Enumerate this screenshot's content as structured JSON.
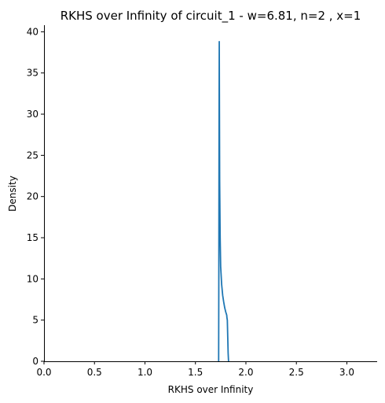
{
  "chart_data": {
    "type": "line",
    "title": "RKHS over Infinity of circuit_1 - w=6.81, n=2 , x=1",
    "xlabel": "RKHS over Infinity",
    "ylabel": "Density",
    "xlim": [
      0,
      3.3
    ],
    "ylim": [
      0,
      40.8
    ],
    "xticks": [
      0.0,
      0.5,
      1.0,
      1.5,
      2.0,
      2.5,
      3.0
    ],
    "xtick_labels": [
      "0.0",
      "0.5",
      "1.0",
      "1.5",
      "2.0",
      "2.5",
      "3.0"
    ],
    "yticks": [
      0,
      5,
      10,
      15,
      20,
      25,
      30,
      35,
      40
    ],
    "ytick_labels": [
      "0",
      "5",
      "10",
      "15",
      "20",
      "25",
      "30",
      "35",
      "40"
    ],
    "grid": false,
    "line_color": "#1f77b4",
    "series": [
      {
        "x": [
          1.73,
          1.732,
          1.734,
          1.736,
          1.738,
          1.74,
          1.745,
          1.75,
          1.76,
          1.77,
          1.78,
          1.79,
          1.8,
          1.81,
          1.812,
          1.816,
          1.82,
          1.824,
          1.828
        ],
        "values": [
          0.0,
          12.0,
          28.0,
          38.8,
          30.0,
          22.0,
          15.0,
          11.5,
          9.3,
          8.0,
          7.2,
          6.5,
          6.0,
          5.6,
          5.3,
          5.0,
          3.0,
          1.0,
          0.0
        ]
      }
    ]
  }
}
